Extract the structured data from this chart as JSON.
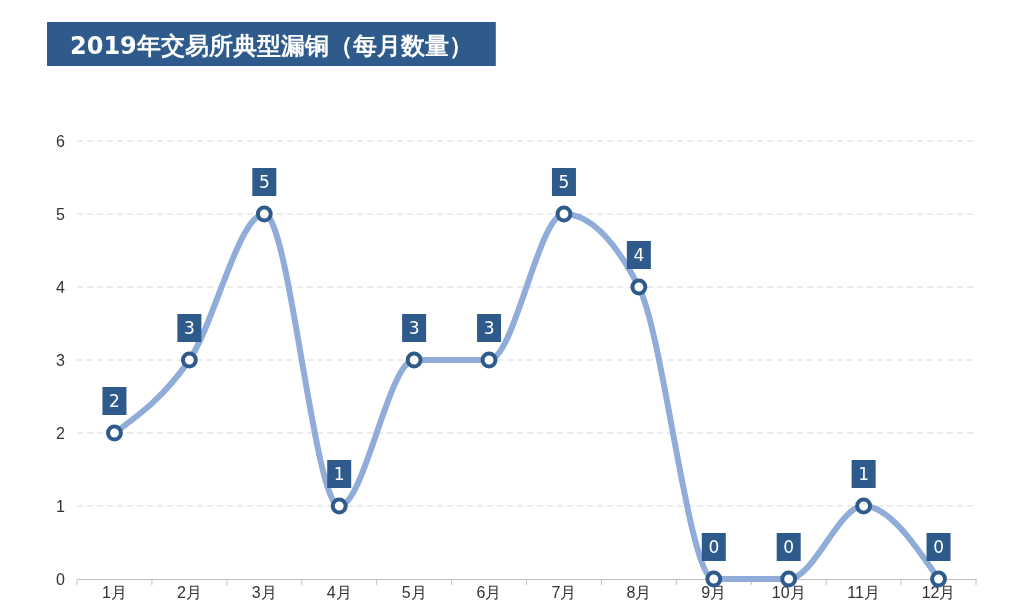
{
  "chart_data": {
    "type": "line",
    "title": "2019年交易所典型漏铜（每月数量）",
    "categories": [
      "1月",
      "2月",
      "3月",
      "4月",
      "5月",
      "6月",
      "7月",
      "8月",
      "9月",
      "10月",
      "11月",
      "12月"
    ],
    "series": [
      {
        "color": "#8fadd8",
        "values": [
          2,
          3,
          5,
          1,
          3,
          3,
          5,
          4,
          0,
          0,
          1,
          0
        ]
      }
    ],
    "ylim": [
      0,
      6
    ],
    "yticks": [
      0,
      1,
      2,
      3,
      4,
      5,
      6
    ],
    "grid": "y",
    "data_labels": true,
    "marker": "circle",
    "line_style": "solid"
  }
}
